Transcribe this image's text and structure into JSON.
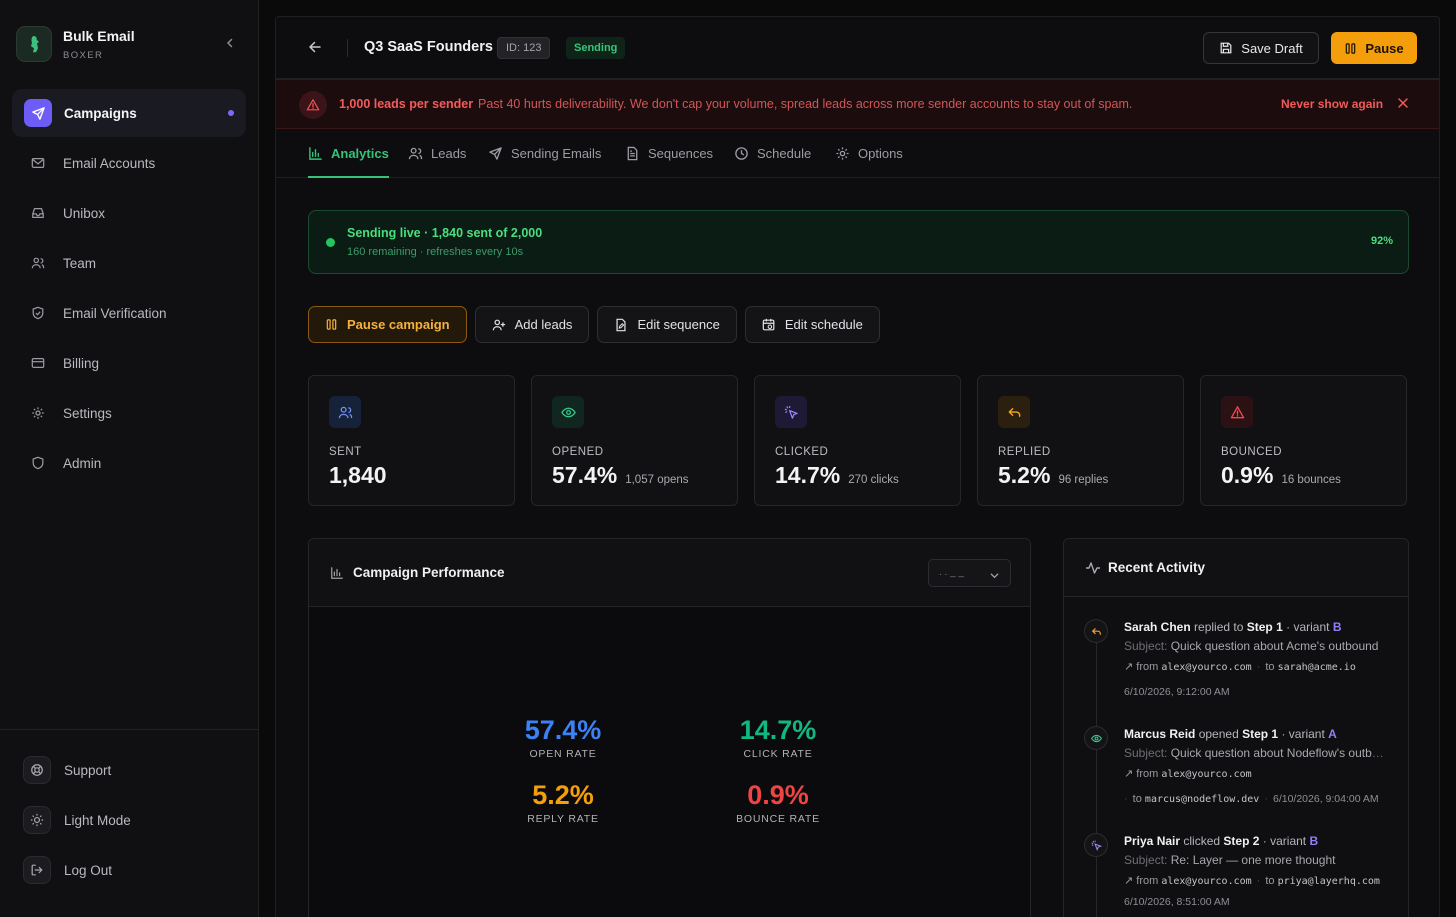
{
  "brand": {
    "name": "Bulk Email",
    "sub": "BOXER"
  },
  "sidebar": {
    "items": [
      {
        "label": "Campaigns"
      },
      {
        "label": "Email Accounts"
      },
      {
        "label": "Unibox"
      },
      {
        "label": "Team"
      },
      {
        "label": "Email Verification"
      },
      {
        "label": "Billing"
      },
      {
        "label": "Settings"
      },
      {
        "label": "Admin"
      }
    ],
    "bottom": [
      {
        "label": "Support"
      },
      {
        "label": "Light Mode"
      },
      {
        "label": "Log Out"
      }
    ]
  },
  "header": {
    "title": "Q3 SaaS Founders",
    "id_badge": "ID: 123",
    "status": "Sending",
    "save_label": "Save Draft",
    "pause_label": "Pause"
  },
  "warning": {
    "title": "1,000 leads per sender",
    "message": "Past 40 hurts deliverability. We don't cap your volume, spread leads across more sender accounts to stay out of spam.",
    "dismiss": "Never show again"
  },
  "tabs": [
    {
      "label": "Analytics"
    },
    {
      "label": "Leads"
    },
    {
      "label": "Sending Emails"
    },
    {
      "label": "Sequences"
    },
    {
      "label": "Schedule"
    },
    {
      "label": "Options"
    }
  ],
  "live": {
    "title": "Sending live · 1,840 sent of 2,000",
    "sub": "160 remaining · refreshes every 10s",
    "percent": "92%"
  },
  "actions": {
    "pause": "Pause campaign",
    "add_leads": "Add leads",
    "edit_sequence": "Edit sequence",
    "edit_schedule": "Edit schedule"
  },
  "stats": [
    {
      "label": "SENT",
      "value": "1,840",
      "detail": ""
    },
    {
      "label": "OPENED",
      "value": "57.4%",
      "detail": "1,057 opens"
    },
    {
      "label": "CLICKED",
      "value": "14.7%",
      "detail": "270 clicks"
    },
    {
      "label": "REPLIED",
      "value": "5.2%",
      "detail": "96 replies"
    },
    {
      "label": "BOUNCED",
      "value": "0.9%",
      "detail": "16 bounces"
    }
  ],
  "performance": {
    "title": "Campaign Performance",
    "select_value": ". . _ _",
    "metrics": [
      {
        "value": "57.4%",
        "label": "OPEN RATE",
        "color": "#3b82f6"
      },
      {
        "value": "14.7%",
        "label": "CLICK RATE",
        "color": "#10b981"
      },
      {
        "value": "5.2%",
        "label": "REPLY RATE",
        "color": "#f59e0b"
      },
      {
        "value": "0.9%",
        "label": "BOUNCE RATE",
        "color": "#ef4444"
      }
    ]
  },
  "activity": {
    "title": "Recent Activity",
    "events": [
      {
        "name": "Sarah Chen",
        "verb": "replied to",
        "step": "Step 1",
        "variant_prefix": "· variant",
        "variant": "B",
        "subject_label": "Subject:",
        "subject": "Quick question about Acme's outbound",
        "from_label": "from",
        "from": "alex@yourco.com",
        "to_label": "to",
        "to": "sarah@acme.io",
        "timestamp": "6/10/2026, 9:12:00 AM"
      },
      {
        "name": "Marcus Reid",
        "verb": "opened",
        "step": "Step 1",
        "variant_prefix": "· variant",
        "variant": "A",
        "subject_label": "Subject:",
        "subject": "Quick question about Nodeflow's outbo...",
        "from_label": "from",
        "from": "alex@yourco.com",
        "to_label": "to",
        "to": "marcus@nodeflow.dev",
        "timestamp": "6/10/2026, 9:04:00 AM"
      },
      {
        "name": "Priya Nair",
        "verb": "clicked",
        "step": "Step 2",
        "variant_prefix": "· variant",
        "variant": "B",
        "subject_label": "Subject:",
        "subject": "Re: Layer — one more thought",
        "from_label": "from",
        "from": "alex@yourco.com",
        "to_label": "to",
        "to": "priya@layerhq.com",
        "timestamp": "6/10/2026, 8:51:00 AM"
      }
    ]
  }
}
